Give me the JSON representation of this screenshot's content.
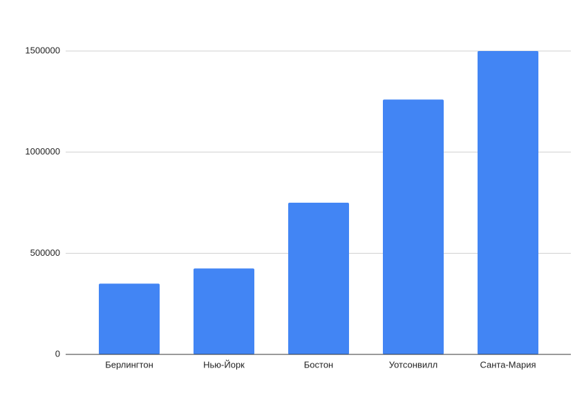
{
  "chart_data": {
    "type": "bar",
    "categories": [
      "Берлингтон",
      "Нью-Йорк",
      "Бостон",
      "Уотсонвилл",
      "Санта-Мария"
    ],
    "values": [
      350000,
      425000,
      750000,
      1260000,
      1500000
    ],
    "color": "#4285f4",
    "ylim": [
      0,
      1500000
    ],
    "yticks": [
      0,
      500000,
      1000000,
      1500000
    ],
    "grid": true
  }
}
